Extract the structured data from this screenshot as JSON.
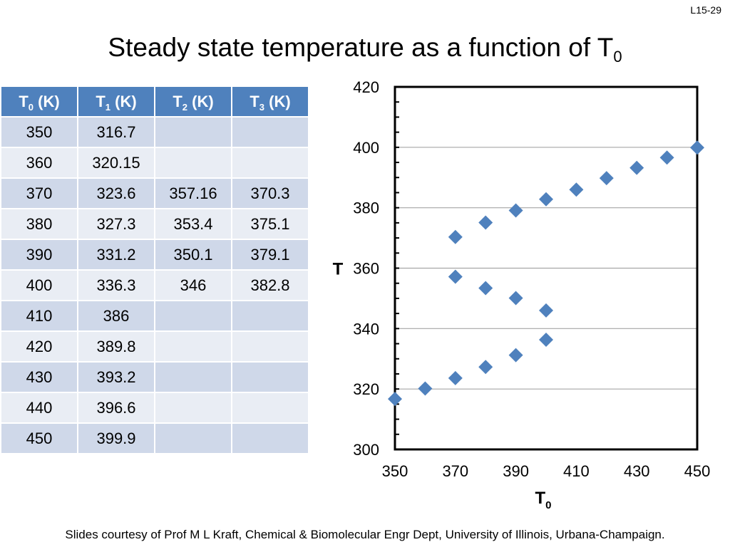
{
  "slide_number": "L15-29",
  "title": {
    "text": "Steady state temperature as a function of T",
    "subscript": "0"
  },
  "table": {
    "headers": [
      {
        "main": "T",
        "sub": "0",
        "unit": " (K)"
      },
      {
        "main": "T",
        "sub": "1",
        "unit": " (K)"
      },
      {
        "main": "T",
        "sub": "2",
        "unit": " (K)"
      },
      {
        "main": "T",
        "sub": "3",
        "unit": " (K)"
      }
    ],
    "rows": [
      [
        "350",
        "316.7",
        "",
        ""
      ],
      [
        "360",
        "320.15",
        "",
        ""
      ],
      [
        "370",
        "323.6",
        "357.16",
        "370.3"
      ],
      [
        "380",
        "327.3",
        "353.4",
        "375.1"
      ],
      [
        "390",
        "331.2",
        "350.1",
        "379.1"
      ],
      [
        "400",
        "336.3",
        "346",
        "382.8"
      ],
      [
        "410",
        "386",
        "",
        ""
      ],
      [
        "420",
        "389.8",
        "",
        ""
      ],
      [
        "430",
        "393.2",
        "",
        ""
      ],
      [
        "440",
        "396.6",
        "",
        ""
      ],
      [
        "450",
        "399.9",
        "",
        ""
      ]
    ]
  },
  "chart_data": {
    "type": "scatter",
    "title": "",
    "xlabel": "T",
    "xlabel_sub": "0",
    "ylabel": "T",
    "xlim": [
      350,
      450
    ],
    "ylim": [
      300,
      420
    ],
    "xticks": [
      350,
      370,
      390,
      410,
      430,
      450
    ],
    "yticks": [
      300,
      320,
      340,
      360,
      380,
      400,
      420
    ],
    "grid": "horizontal",
    "marker_color": "#4f81bd",
    "series": [
      {
        "points": [
          [
            350,
            316.7
          ],
          [
            360,
            320.15
          ],
          [
            370,
            323.6
          ],
          [
            380,
            327.3
          ],
          [
            390,
            331.2
          ],
          [
            400,
            336.3
          ],
          [
            370,
            357.16
          ],
          [
            380,
            353.4
          ],
          [
            390,
            350.1
          ],
          [
            400,
            346
          ],
          [
            370,
            370.3
          ],
          [
            380,
            375.1
          ],
          [
            390,
            379.1
          ],
          [
            400,
            382.8
          ],
          [
            410,
            386
          ],
          [
            420,
            389.8
          ],
          [
            430,
            393.2
          ],
          [
            440,
            396.6
          ],
          [
            450,
            399.9
          ]
        ]
      }
    ]
  },
  "footer": "Slides courtesy of Prof M L Kraft, Chemical & Biomolecular Engr Dept, University of Illinois, Urbana-Champaign."
}
